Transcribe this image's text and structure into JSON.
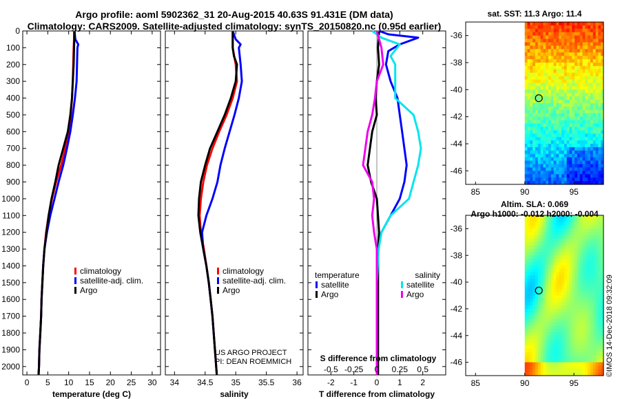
{
  "title_line1": "Argo profile: aoml 5902362_31 20-Aug-2015 40.63S 91.431E (DM data)",
  "title_line2": "Climatology: CARS2009. Satellite-adjusted climatology: synTS_20150820.nc (0.95d earlier)",
  "watermark": "©IMOS 14-Dec-2018 09:32:09",
  "credit": [
    "US ARGO PROJECT",
    "PI: DEAN ROEMMICH"
  ],
  "colors": {
    "climatology": "#ff0000",
    "satellite": "#0000ff",
    "argo": "#000000",
    "satellite_s": "#00e5ee",
    "argo_s": "#ee00ee"
  },
  "chart_data": [
    {
      "type": "line",
      "name": "temperature",
      "xlabel": "temperature (deg C)",
      "xlim": [
        -1,
        32
      ],
      "ylim": [
        2050,
        0
      ],
      "xticks": [
        0,
        5,
        10,
        15,
        20,
        25,
        30
      ],
      "yticks": [
        0,
        100,
        200,
        300,
        400,
        500,
        600,
        700,
        800,
        900,
        1000,
        1100,
        1200,
        1300,
        1400,
        1500,
        1600,
        1700,
        1800,
        1900,
        2000
      ],
      "legend": [
        "climatology",
        "satellite-adj. clim.",
        "Argo"
      ],
      "series": [
        {
          "name": "climatology",
          "color": "#ff0000",
          "points": [
            [
              11.3,
              0
            ],
            [
              11.3,
              50
            ],
            [
              11.2,
              100
            ],
            [
              11.1,
              200
            ],
            [
              11.0,
              300
            ],
            [
              10.8,
              400
            ],
            [
              10.5,
              500
            ],
            [
              10.0,
              600
            ],
            [
              9.2,
              700
            ],
            [
              8.2,
              800
            ],
            [
              7.0,
              900
            ],
            [
              6.0,
              1000
            ],
            [
              5.2,
              1100
            ],
            [
              4.6,
              1200
            ],
            [
              4.2,
              1300
            ],
            [
              3.9,
              1400
            ],
            [
              3.7,
              1500
            ],
            [
              3.5,
              1600
            ],
            [
              3.4,
              1700
            ],
            [
              3.2,
              1800
            ],
            [
              3.0,
              1900
            ],
            [
              2.9,
              2000
            ],
            [
              2.8,
              2050
            ]
          ]
        },
        {
          "name": "satellite-adj. clim.",
          "color": "#0000ff",
          "points": [
            [
              11.4,
              0
            ],
            [
              11.6,
              50
            ],
            [
              12.3,
              80
            ],
            [
              12.1,
              100
            ],
            [
              12.0,
              200
            ],
            [
              11.9,
              300
            ],
            [
              11.5,
              400
            ],
            [
              11.0,
              500
            ],
            [
              10.4,
              600
            ],
            [
              9.6,
              700
            ],
            [
              8.7,
              800
            ],
            [
              7.6,
              900
            ],
            [
              6.6,
              1000
            ],
            [
              5.6,
              1100
            ],
            [
              4.8,
              1200
            ],
            [
              4.2,
              1300
            ],
            [
              3.9,
              1400
            ],
            [
              3.7,
              1500
            ],
            [
              3.5,
              1600
            ],
            [
              3.4,
              1700
            ],
            [
              3.2,
              1800
            ],
            [
              3.0,
              1900
            ],
            [
              2.9,
              2000
            ],
            [
              2.8,
              2050
            ]
          ]
        },
        {
          "name": "Argo",
          "color": "#000000",
          "points": [
            [
              11.4,
              5
            ],
            [
              11.3,
              100
            ],
            [
              11.2,
              200
            ],
            [
              11.0,
              300
            ],
            [
              10.8,
              400
            ],
            [
              10.4,
              500
            ],
            [
              9.8,
              600
            ],
            [
              8.7,
              700
            ],
            [
              7.6,
              800
            ],
            [
              6.8,
              900
            ],
            [
              5.9,
              1000
            ],
            [
              5.2,
              1100
            ],
            [
              4.7,
              1200
            ],
            [
              4.2,
              1300
            ],
            [
              3.9,
              1400
            ],
            [
              3.7,
              1500
            ],
            [
              3.5,
              1600
            ],
            [
              3.4,
              1700
            ],
            [
              3.2,
              1800
            ],
            [
              3.0,
              1900
            ],
            [
              2.9,
              2000
            ],
            [
              2.8,
              2050
            ]
          ]
        }
      ]
    },
    {
      "type": "line",
      "name": "salinity",
      "xlabel": "salinity",
      "xlim": [
        33.85,
        36.1
      ],
      "ylim": [
        2050,
        0
      ],
      "xticks": [
        34,
        34.5,
        35,
        35.5,
        36
      ],
      "legend": [
        "climatology",
        "satellite-adj. clim.",
        "Argo"
      ],
      "series": [
        {
          "name": "climatology",
          "color": "#ff0000",
          "points": [
            [
              34.95,
              0
            ],
            [
              34.95,
              100
            ],
            [
              35.0,
              200
            ],
            [
              35.02,
              300
            ],
            [
              34.95,
              400
            ],
            [
              34.85,
              500
            ],
            [
              34.73,
              600
            ],
            [
              34.62,
              700
            ],
            [
              34.53,
              800
            ],
            [
              34.47,
              900
            ],
            [
              34.43,
              1000
            ],
            [
              34.41,
              1100
            ],
            [
              34.43,
              1200
            ],
            [
              34.48,
              1300
            ],
            [
              34.52,
              1400
            ],
            [
              34.56,
              1500
            ],
            [
              34.59,
              1600
            ],
            [
              34.62,
              1700
            ],
            [
              34.64,
              1800
            ],
            [
              34.66,
              1900
            ],
            [
              34.68,
              2000
            ],
            [
              34.69,
              2050
            ]
          ]
        },
        {
          "name": "satellite-adj. clim.",
          "color": "#0000ff",
          "points": [
            [
              34.95,
              0
            ],
            [
              35.0,
              50
            ],
            [
              35.08,
              80
            ],
            [
              35.05,
              100
            ],
            [
              35.08,
              200
            ],
            [
              35.1,
              300
            ],
            [
              35.05,
              400
            ],
            [
              34.98,
              500
            ],
            [
              34.9,
              600
            ],
            [
              34.82,
              700
            ],
            [
              34.75,
              800
            ],
            [
              34.7,
              900
            ],
            [
              34.62,
              1000
            ],
            [
              34.52,
              1100
            ],
            [
              34.45,
              1200
            ],
            [
              34.47,
              1300
            ],
            [
              34.52,
              1400
            ],
            [
              34.56,
              1500
            ],
            [
              34.59,
              1600
            ],
            [
              34.62,
              1700
            ],
            [
              34.64,
              1800
            ],
            [
              34.66,
              1900
            ],
            [
              34.68,
              2000
            ],
            [
              34.69,
              2050
            ]
          ]
        },
        {
          "name": "Argo",
          "color": "#000000",
          "points": [
            [
              34.95,
              5
            ],
            [
              34.95,
              100
            ],
            [
              34.97,
              150
            ],
            [
              35.02,
              200
            ],
            [
              35.0,
              300
            ],
            [
              34.92,
              400
            ],
            [
              34.82,
              500
            ],
            [
              34.7,
              600
            ],
            [
              34.58,
              700
            ],
            [
              34.5,
              800
            ],
            [
              34.43,
              900
            ],
            [
              34.4,
              1000
            ],
            [
              34.39,
              1100
            ],
            [
              34.42,
              1200
            ],
            [
              34.47,
              1300
            ],
            [
              34.52,
              1400
            ],
            [
              34.56,
              1500
            ],
            [
              34.59,
              1600
            ],
            [
              34.62,
              1700
            ],
            [
              34.64,
              1800
            ],
            [
              34.66,
              1900
            ],
            [
              34.68,
              2000
            ],
            [
              34.69,
              2050
            ]
          ]
        }
      ]
    },
    {
      "type": "line",
      "name": "differences",
      "xlabel": "T difference from climatology",
      "xlabel2": "S difference from climatology",
      "xlim": [
        -3.0,
        3.0
      ],
      "ylim": [
        2050,
        0
      ],
      "xticks": [
        -2,
        -1,
        0,
        1,
        2
      ],
      "xticks_s": [
        -0.5,
        -0.25,
        0,
        0.25,
        0.5
      ],
      "xticks_s_labels": [
        "-0.5",
        "-0.25",
        "0",
        "0.25",
        "0.5"
      ],
      "legend_temperature": {
        "title": "temperature",
        "items": [
          "satellite",
          "Argo"
        ]
      },
      "legend_salinity": {
        "title": "salinity",
        "items": [
          "satellite",
          "Argo"
        ]
      },
      "series": [
        {
          "name": "T satellite",
          "color": "#0000ff",
          "points": [
            [
              0.1,
              0
            ],
            [
              0.5,
              20
            ],
            [
              1.8,
              40
            ],
            [
              1.0,
              80
            ],
            [
              0.5,
              120
            ],
            [
              0.4,
              200
            ],
            [
              0.6,
              300
            ],
            [
              0.9,
              400
            ],
            [
              1.0,
              500
            ],
            [
              1.1,
              600
            ],
            [
              1.2,
              700
            ],
            [
              1.3,
              800
            ],
            [
              1.2,
              900
            ],
            [
              1.0,
              1000
            ],
            [
              0.6,
              1100
            ],
            [
              0.2,
              1200
            ],
            [
              0.05,
              1300
            ],
            [
              0.05,
              1500
            ],
            [
              0.05,
              2050
            ]
          ]
        },
        {
          "name": "T Argo",
          "color": "#000000",
          "points": [
            [
              0.1,
              5
            ],
            [
              0.05,
              100
            ],
            [
              0.1,
              200
            ],
            [
              0.0,
              300
            ],
            [
              -0.05,
              400
            ],
            [
              0.0,
              500
            ],
            [
              -0.2,
              600
            ],
            [
              -0.3,
              700
            ],
            [
              -0.4,
              800
            ],
            [
              -0.25,
              900
            ],
            [
              0.0,
              1000
            ],
            [
              0.05,
              1100
            ],
            [
              0.1,
              1200
            ],
            [
              0.05,
              1300
            ],
            [
              0.05,
              1500
            ],
            [
              0.05,
              2050
            ]
          ]
        },
        {
          "name": "S satellite",
          "color": "#00e5ee",
          "points": [
            [
              -0.05,
              0
            ],
            [
              0.05,
              40
            ],
            [
              0.25,
              80
            ],
            [
              0.15,
              150
            ],
            [
              0.2,
              200
            ],
            [
              0.2,
              400
            ],
            [
              0.4,
              500
            ],
            [
              0.45,
              600
            ],
            [
              0.48,
              700
            ],
            [
              0.45,
              800
            ],
            [
              0.4,
              900
            ],
            [
              0.35,
              1000
            ],
            [
              0.15,
              1100
            ],
            [
              0.05,
              1200
            ],
            [
              0.02,
              1300
            ],
            [
              0.0,
              1500
            ],
            [
              0.0,
              2050
            ]
          ]
        },
        {
          "name": "S Argo",
          "color": "#ee00ee",
          "points": [
            [
              0.0,
              0
            ],
            [
              0.05,
              100
            ],
            [
              0.07,
              200
            ],
            [
              0.0,
              300
            ],
            [
              -0.02,
              400
            ],
            [
              -0.05,
              500
            ],
            [
              -0.1,
              600
            ],
            [
              -0.15,
              800
            ],
            [
              -0.05,
              900
            ],
            [
              -0.03,
              1000
            ],
            [
              -0.05,
              1100
            ],
            [
              -0.03,
              1200
            ],
            [
              0.0,
              1300
            ],
            [
              0.0,
              1500
            ],
            [
              0.0,
              2050
            ]
          ]
        }
      ]
    },
    {
      "type": "heatmap",
      "name": "sat_sst_map",
      "title": "sat. SST: 11.3 Argo: 11.4",
      "xlim": [
        84,
        98
      ],
      "ylim": [
        -47,
        -35
      ],
      "xticks": [
        85,
        90,
        95
      ],
      "yticks": [
        -36,
        -38,
        -40,
        -42,
        -44,
        -46
      ],
      "data_lon_start": 90,
      "marker": {
        "lon": 91.431,
        "lat": -40.63
      }
    },
    {
      "type": "heatmap",
      "name": "altim_sla_map",
      "title": "Altim. SLA: 0.069",
      "subtitle": "Argo h1000: -0.012 h2000: -0.004",
      "xlim": [
        84,
        98
      ],
      "ylim": [
        -47,
        -35
      ],
      "xticks": [
        85,
        90,
        95
      ],
      "yticks": [
        -36,
        -38,
        -40,
        -42,
        -44,
        -46
      ],
      "data_lon_start": 90,
      "marker": {
        "lon": 91.431,
        "lat": -40.63
      }
    }
  ]
}
